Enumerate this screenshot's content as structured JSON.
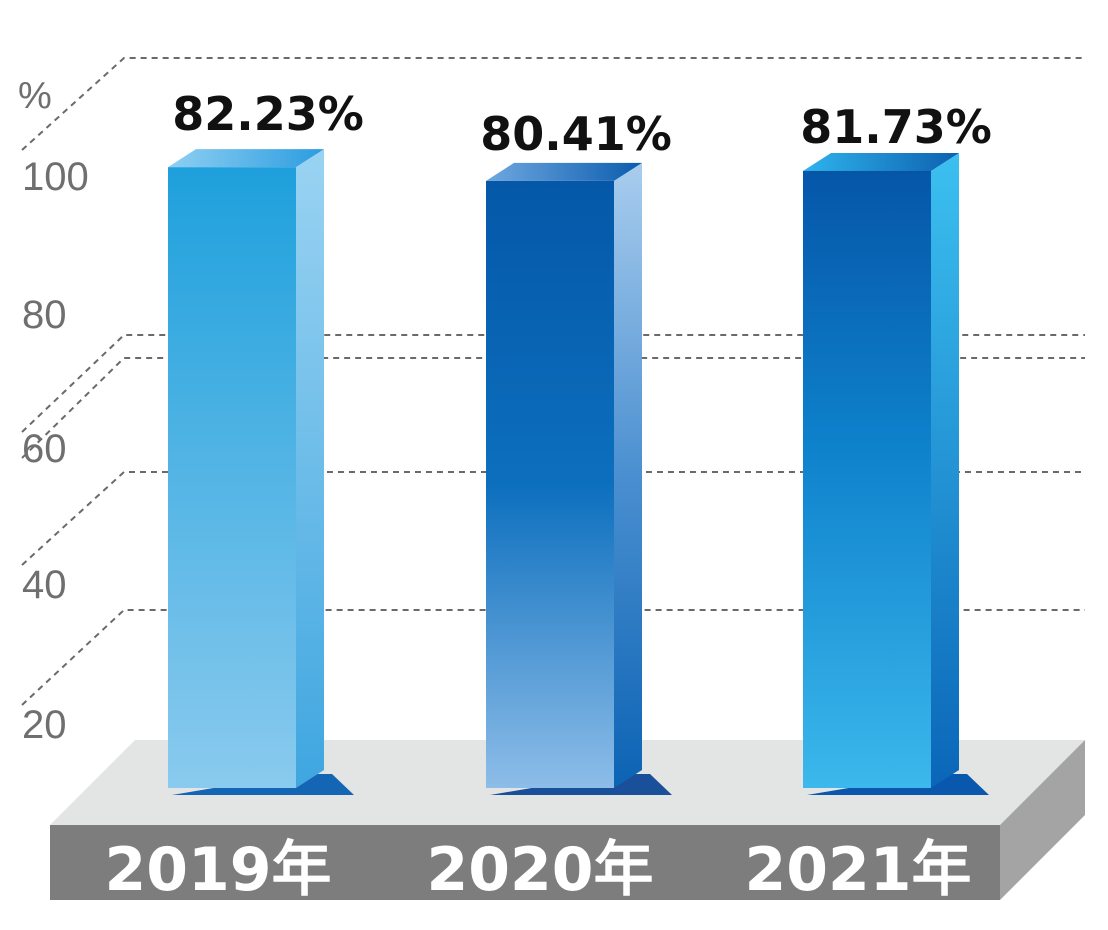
{
  "chart_data": {
    "type": "bar",
    "unit": "%",
    "categories": [
      "2019年",
      "2020年",
      "2021年"
    ],
    "values": [
      82.23,
      80.41,
      81.73
    ],
    "data_labels": [
      "82.23%",
      "80.41%",
      "81.73%"
    ],
    "yticks": [
      20,
      40,
      60,
      80,
      100
    ],
    "ylim": [
      0,
      100
    ],
    "grid": true,
    "colors": {
      "bar1": "#2aa0dc",
      "bar2": "#0a5fae",
      "bar3": "#1a8fd6",
      "floor_top": "#e3e4e4",
      "floor_front": "#7d7d7d",
      "floor_side": "#a4a4a4"
    }
  }
}
